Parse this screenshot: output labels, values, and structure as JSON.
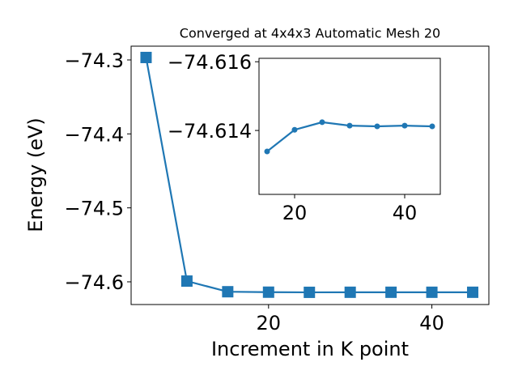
{
  "chart_data": [
    {
      "type": "line",
      "title": "Converged at 4x4x3 Automatic Mesh 20",
      "xlabel": "Increment in K point",
      "ylabel": "Energy (eV)",
      "x": [
        5,
        10,
        15,
        20,
        25,
        30,
        35,
        40,
        45
      ],
      "values": [
        -74.2967,
        -74.599,
        -74.6134,
        -74.614,
        -74.6142,
        -74.6141,
        -74.6141,
        -74.6141,
        -74.6141
      ],
      "color": "#1f77b4",
      "marker": "square",
      "xlim": [
        3.17,
        46.98
      ],
      "ylim": [
        -74.6307,
        -74.2814
      ],
      "xticks": [
        20,
        40
      ],
      "yticks": [
        {
          "value": -74.6,
          "label": "−74.6"
        },
        {
          "value": -74.5,
          "label": "−74.5"
        },
        {
          "value": -74.4,
          "label": "−74.4"
        },
        {
          "value": -74.3,
          "label": "−74.3"
        }
      ]
    },
    {
      "type": "line",
      "x": [
        15,
        20,
        25,
        30,
        35,
        40,
        45
      ],
      "values": [
        -74.61339,
        -74.61402,
        -74.61424,
        -74.61414,
        -74.61412,
        -74.61414,
        -74.61412
      ],
      "color": "#1f77b4",
      "marker": "circle",
      "xlim": [
        13.53,
        46.47
      ],
      "ylim": [
        -74.61214,
        -74.6161
      ],
      "xticks": [
        20,
        40
      ],
      "yticks": [
        {
          "value": -74.614,
          "label": "−74.614"
        },
        {
          "value": -74.616,
          "label": "−74.616"
        }
      ]
    }
  ]
}
